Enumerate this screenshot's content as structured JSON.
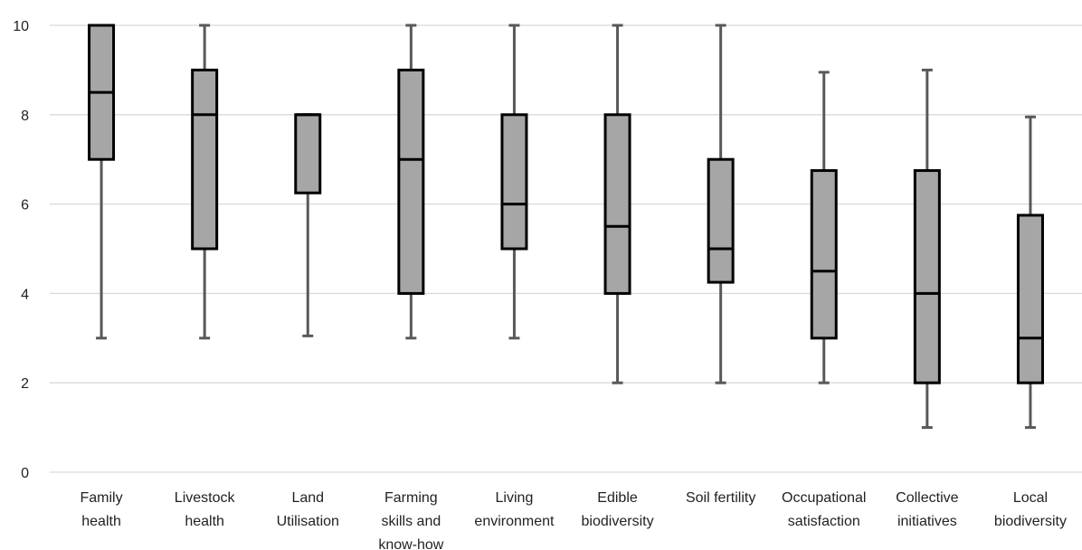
{
  "chart_data": {
    "type": "boxplot",
    "categories": [
      [
        "Family",
        "health"
      ],
      [
        "Livestock",
        "health"
      ],
      [
        "Land",
        "Utilisation"
      ],
      [
        "Farming",
        "skills and",
        "know-how"
      ],
      [
        "Living",
        "environment"
      ],
      [
        "Edible",
        "biodiversity"
      ],
      [
        "Soil fertility"
      ],
      [
        "Occupational",
        "satisfaction"
      ],
      [
        "Collective",
        "initiatives"
      ],
      [
        "Local",
        "biodiversity"
      ]
    ],
    "boxes": [
      {
        "min": 3,
        "q1": 7,
        "median": 8.5,
        "q3": 10,
        "max": 10
      },
      {
        "min": 3,
        "q1": 5,
        "median": 8,
        "q3": 9,
        "max": 10
      },
      {
        "min": 3.05,
        "q1": 6.25,
        "median": 8,
        "q3": 8,
        "max": 8
      },
      {
        "min": 3,
        "q1": 4,
        "median": 7,
        "q3": 9,
        "max": 10
      },
      {
        "min": 3,
        "q1": 5,
        "median": 6,
        "q3": 8,
        "max": 10
      },
      {
        "min": 2,
        "q1": 4,
        "median": 5.5,
        "q3": 8,
        "max": 10
      },
      {
        "min": 2,
        "q1": 4.25,
        "median": 5,
        "q3": 7,
        "max": 10
      },
      {
        "min": 2,
        "q1": 3,
        "median": 4.5,
        "q3": 6.75,
        "max": 8.95
      },
      {
        "min": 1,
        "q1": 2,
        "median": 4,
        "q3": 6.75,
        "max": 9
      },
      {
        "min": 1,
        "q1": 2,
        "median": 3,
        "q3": 5.75,
        "max": 7.95
      }
    ],
    "yticks": [
      0,
      2,
      4,
      6,
      8,
      10
    ],
    "ylim": [
      0,
      10
    ],
    "grid": true,
    "colors": {
      "box_fill": "#a6a6a6",
      "box_stroke": "#000000",
      "whisker": "#595959",
      "grid": "#d9d9d9"
    }
  }
}
